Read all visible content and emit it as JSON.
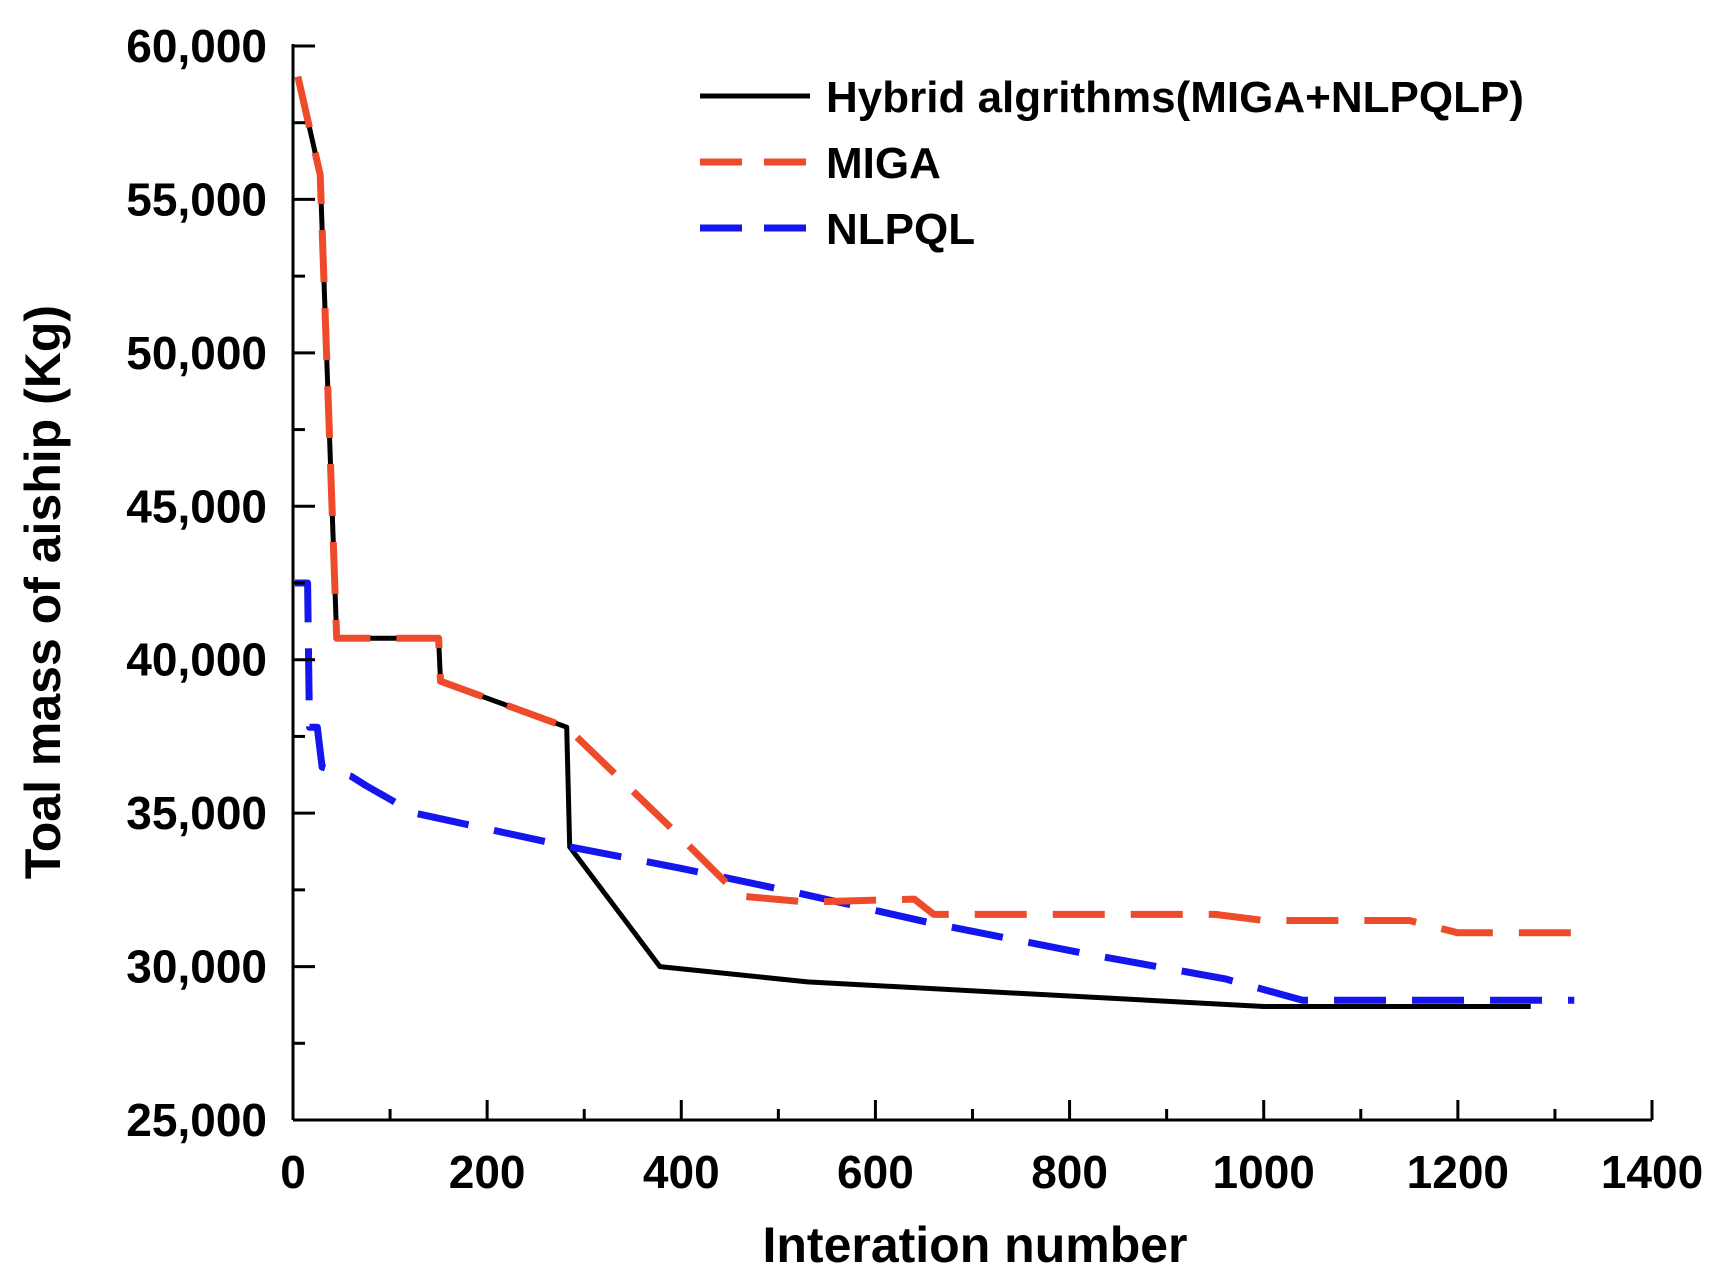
{
  "chart_data": {
    "type": "line",
    "title": "",
    "xlabel": "Interation number",
    "ylabel": "Toal mass of aiship (Kg)",
    "xlim": [
      0,
      1400
    ],
    "ylim": [
      25000,
      60000
    ],
    "x_ticks": [
      0,
      200,
      400,
      600,
      800,
      1000,
      1200,
      1400
    ],
    "x_tick_labels": [
      "0",
      "200",
      "400",
      "600",
      "800",
      "1000",
      "1200",
      "1400"
    ],
    "y_ticks": [
      25000,
      30000,
      35000,
      40000,
      45000,
      50000,
      55000,
      60000
    ],
    "y_tick_labels": [
      "25,000",
      "30,000",
      "35,000",
      "40,000",
      "45,000",
      "50,000",
      "55,000",
      "60,000"
    ],
    "legend_position": "top-right",
    "series": [
      {
        "name": "Hybrid algrithms(MIGA+NLPQLP)",
        "color": "#000000",
        "style": "solid",
        "x": [
          5,
          28,
          45,
          50,
          150,
          152,
          282,
          285,
          378,
          530,
          1000,
          1275
        ],
        "y": [
          59000,
          55800,
          40700,
          40700,
          40700,
          39300,
          37800,
          33900,
          30000,
          29500,
          28700,
          28700
        ]
      },
      {
        "name": "MIGA",
        "color": "#ee4b2b",
        "style": "dashed",
        "x": [
          5,
          28,
          45,
          50,
          150,
          152,
          282,
          390,
          460,
          530,
          640,
          660,
          950,
          1000,
          1150,
          1200,
          1320
        ],
        "y": [
          59000,
          55800,
          40700,
          40700,
          40700,
          39300,
          37800,
          34500,
          32300,
          32100,
          32200,
          31700,
          31700,
          31500,
          31500,
          31100,
          31100
        ]
      },
      {
        "name": "NLPQL",
        "color": "#1515ee",
        "style": "dashed",
        "x": [
          2,
          15,
          17,
          25,
          30,
          60,
          75,
          125,
          140,
          285,
          400,
          520,
          660,
          820,
          960,
          1040,
          1200,
          1320
        ],
        "y": [
          42500,
          42500,
          37800,
          37800,
          36500,
          36200,
          35900,
          35000,
          34900,
          33900,
          33200,
          32400,
          31400,
          30400,
          29600,
          28900,
          28900,
          28900
        ]
      }
    ]
  }
}
